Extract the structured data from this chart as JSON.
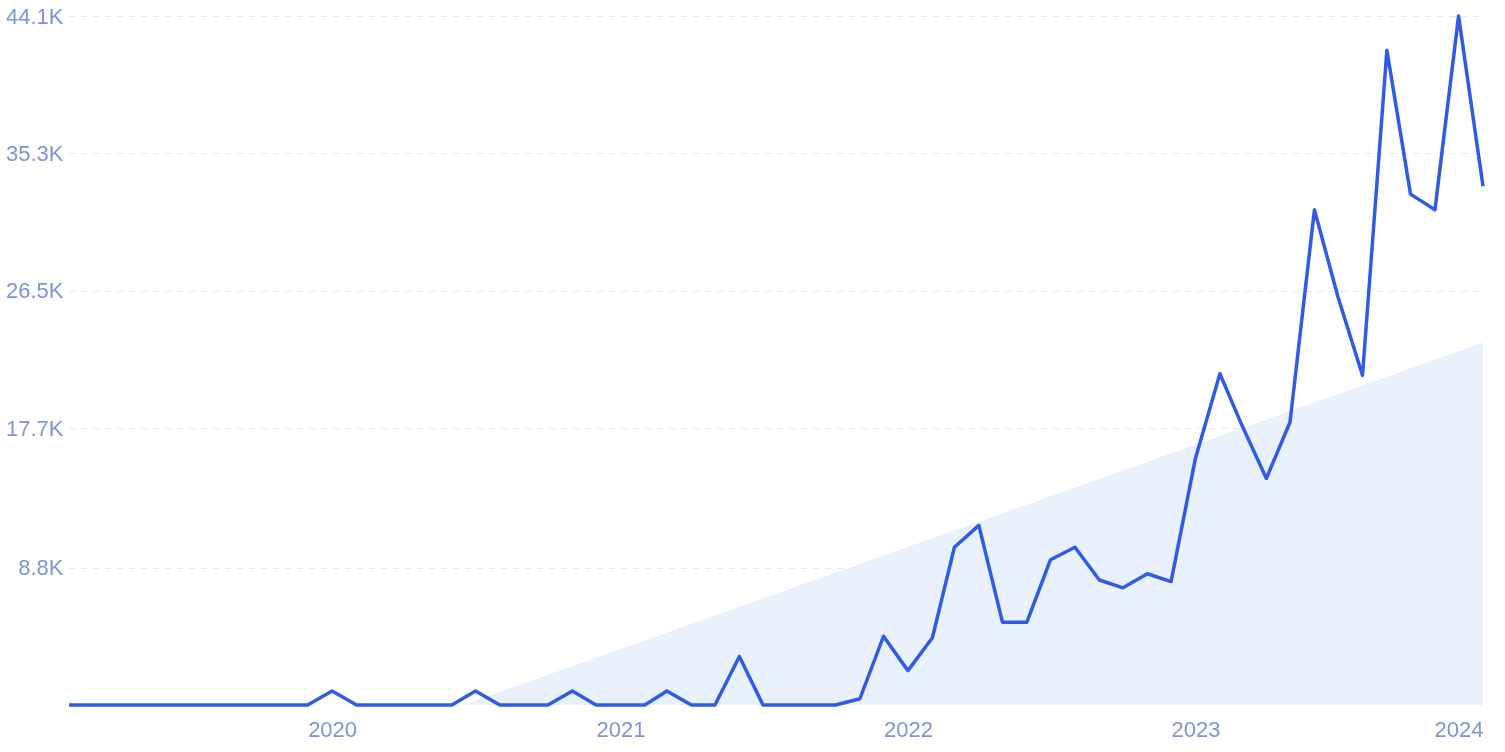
{
  "chart_data": {
    "type": "line",
    "x": [
      "2019-02",
      "2019-03",
      "2019-04",
      "2019-05",
      "2019-06",
      "2019-07",
      "2019-08",
      "2019-09",
      "2019-10",
      "2019-11",
      "2019-12",
      "2020-01",
      "2020-02",
      "2020-03",
      "2020-04",
      "2020-05",
      "2020-06",
      "2020-07",
      "2020-08",
      "2020-09",
      "2020-10",
      "2020-11",
      "2020-12",
      "2021-01",
      "2021-02",
      "2021-03",
      "2021-04",
      "2021-05",
      "2021-06",
      "2021-07",
      "2021-08",
      "2021-09",
      "2021-10",
      "2021-11",
      "2021-12",
      "2022-01",
      "2022-02",
      "2022-03",
      "2022-04",
      "2022-05",
      "2022-06",
      "2022-07",
      "2022-08",
      "2022-09",
      "2022-10",
      "2022-11",
      "2022-12",
      "2023-01",
      "2023-02",
      "2023-03",
      "2023-04",
      "2023-05",
      "2023-06",
      "2023-07",
      "2023-08",
      "2023-09",
      "2023-10",
      "2023-11",
      "2023-12",
      "2024-01"
    ],
    "series": [
      {
        "type": "area",
        "color": "#e9f1fd",
        "x": [
          "2020-06-15",
          "2024-01"
        ],
        "values": [
          0,
          23200
        ]
      },
      {
        "color": "#2f5be6",
        "values": [
          0,
          0,
          0,
          0,
          0,
          0,
          0,
          0,
          0,
          0,
          0,
          900,
          0,
          0,
          0,
          0,
          0,
          900,
          0,
          0,
          0,
          900,
          0,
          0,
          0,
          900,
          0,
          0,
          3100,
          0,
          0,
          0,
          0,
          400,
          4400,
          2200,
          4300,
          10100,
          11500,
          5300,
          5300,
          9300,
          10100,
          8000,
          7500,
          8400,
          7900,
          15800,
          21200,
          17900,
          14500,
          18100,
          31700,
          26100,
          21100,
          41900,
          32700,
          31700,
          44100,
          33200
        ]
      }
    ],
    "xlim": [
      "2019-02",
      "2024-01"
    ],
    "xticks": [
      {
        "value": "2020",
        "label": "2020"
      },
      {
        "value": "2021",
        "label": "2021"
      },
      {
        "value": "2022",
        "label": "2022"
      },
      {
        "value": "2023",
        "label": "2023"
      },
      {
        "value": "2024",
        "label": "2024"
      }
    ],
    "ylim": [
      0,
      44100
    ],
    "yticks": [
      {
        "value": 8800,
        "label": "8.8K"
      },
      {
        "value": 17700,
        "label": "17.7K"
      },
      {
        "value": 26500,
        "label": "26.5K"
      },
      {
        "value": 35300,
        "label": "35.3K"
      },
      {
        "value": 44100,
        "label": "44.1K"
      }
    ],
    "grid": "y",
    "legend": false,
    "marker": "none",
    "line_style": "solid"
  }
}
